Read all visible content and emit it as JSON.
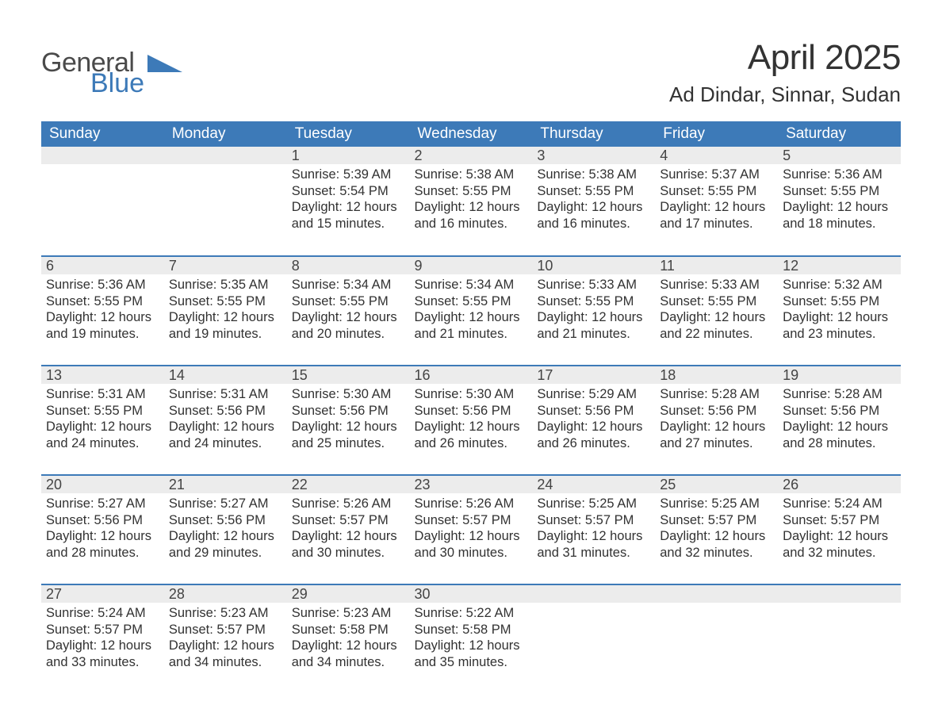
{
  "brand": {
    "word1": "General",
    "word2": "Blue",
    "word1_color": "#4a4a4a",
    "word2_color": "#3d7ab8",
    "shape_color": "#3d7ab8"
  },
  "header": {
    "month_title": "April 2025",
    "location": "Ad Dindar, Sinnar, Sudan"
  },
  "style": {
    "header_bg": "#3d7ab8",
    "header_fg": "#ffffff",
    "daynum_bg": "#ececec",
    "row_divider": "#3d7ab8",
    "text_color": "#323232",
    "page_bg": "#ffffff"
  },
  "weekdays": [
    "Sunday",
    "Monday",
    "Tuesday",
    "Wednesday",
    "Thursday",
    "Friday",
    "Saturday"
  ],
  "labels": {
    "sunrise_prefix": "Sunrise: ",
    "sunset_prefix": "Sunset: ",
    "daylight_prefix": "Daylight: "
  },
  "weeks": [
    [
      null,
      null,
      {
        "n": "1",
        "sunrise": "5:39 AM",
        "sunset": "5:54 PM",
        "daylight": "12 hours and 15 minutes."
      },
      {
        "n": "2",
        "sunrise": "5:38 AM",
        "sunset": "5:55 PM",
        "daylight": "12 hours and 16 minutes."
      },
      {
        "n": "3",
        "sunrise": "5:38 AM",
        "sunset": "5:55 PM",
        "daylight": "12 hours and 16 minutes."
      },
      {
        "n": "4",
        "sunrise": "5:37 AM",
        "sunset": "5:55 PM",
        "daylight": "12 hours and 17 minutes."
      },
      {
        "n": "5",
        "sunrise": "5:36 AM",
        "sunset": "5:55 PM",
        "daylight": "12 hours and 18 minutes."
      }
    ],
    [
      {
        "n": "6",
        "sunrise": "5:36 AM",
        "sunset": "5:55 PM",
        "daylight": "12 hours and 19 minutes."
      },
      {
        "n": "7",
        "sunrise": "5:35 AM",
        "sunset": "5:55 PM",
        "daylight": "12 hours and 19 minutes."
      },
      {
        "n": "8",
        "sunrise": "5:34 AM",
        "sunset": "5:55 PM",
        "daylight": "12 hours and 20 minutes."
      },
      {
        "n": "9",
        "sunrise": "5:34 AM",
        "sunset": "5:55 PM",
        "daylight": "12 hours and 21 minutes."
      },
      {
        "n": "10",
        "sunrise": "5:33 AM",
        "sunset": "5:55 PM",
        "daylight": "12 hours and 21 minutes."
      },
      {
        "n": "11",
        "sunrise": "5:33 AM",
        "sunset": "5:55 PM",
        "daylight": "12 hours and 22 minutes."
      },
      {
        "n": "12",
        "sunrise": "5:32 AM",
        "sunset": "5:55 PM",
        "daylight": "12 hours and 23 minutes."
      }
    ],
    [
      {
        "n": "13",
        "sunrise": "5:31 AM",
        "sunset": "5:55 PM",
        "daylight": "12 hours and 24 minutes."
      },
      {
        "n": "14",
        "sunrise": "5:31 AM",
        "sunset": "5:56 PM",
        "daylight": "12 hours and 24 minutes."
      },
      {
        "n": "15",
        "sunrise": "5:30 AM",
        "sunset": "5:56 PM",
        "daylight": "12 hours and 25 minutes."
      },
      {
        "n": "16",
        "sunrise": "5:30 AM",
        "sunset": "5:56 PM",
        "daylight": "12 hours and 26 minutes."
      },
      {
        "n": "17",
        "sunrise": "5:29 AM",
        "sunset": "5:56 PM",
        "daylight": "12 hours and 26 minutes."
      },
      {
        "n": "18",
        "sunrise": "5:28 AM",
        "sunset": "5:56 PM",
        "daylight": "12 hours and 27 minutes."
      },
      {
        "n": "19",
        "sunrise": "5:28 AM",
        "sunset": "5:56 PM",
        "daylight": "12 hours and 28 minutes."
      }
    ],
    [
      {
        "n": "20",
        "sunrise": "5:27 AM",
        "sunset": "5:56 PM",
        "daylight": "12 hours and 28 minutes."
      },
      {
        "n": "21",
        "sunrise": "5:27 AM",
        "sunset": "5:56 PM",
        "daylight": "12 hours and 29 minutes."
      },
      {
        "n": "22",
        "sunrise": "5:26 AM",
        "sunset": "5:57 PM",
        "daylight": "12 hours and 30 minutes."
      },
      {
        "n": "23",
        "sunrise": "5:26 AM",
        "sunset": "5:57 PM",
        "daylight": "12 hours and 30 minutes."
      },
      {
        "n": "24",
        "sunrise": "5:25 AM",
        "sunset": "5:57 PM",
        "daylight": "12 hours and 31 minutes."
      },
      {
        "n": "25",
        "sunrise": "5:25 AM",
        "sunset": "5:57 PM",
        "daylight": "12 hours and 32 minutes."
      },
      {
        "n": "26",
        "sunrise": "5:24 AM",
        "sunset": "5:57 PM",
        "daylight": "12 hours and 32 minutes."
      }
    ],
    [
      {
        "n": "27",
        "sunrise": "5:24 AM",
        "sunset": "5:57 PM",
        "daylight": "12 hours and 33 minutes."
      },
      {
        "n": "28",
        "sunrise": "5:23 AM",
        "sunset": "5:57 PM",
        "daylight": "12 hours and 34 minutes."
      },
      {
        "n": "29",
        "sunrise": "5:23 AM",
        "sunset": "5:58 PM",
        "daylight": "12 hours and 34 minutes."
      },
      {
        "n": "30",
        "sunrise": "5:22 AM",
        "sunset": "5:58 PM",
        "daylight": "12 hours and 35 minutes."
      },
      null,
      null,
      null
    ]
  ]
}
